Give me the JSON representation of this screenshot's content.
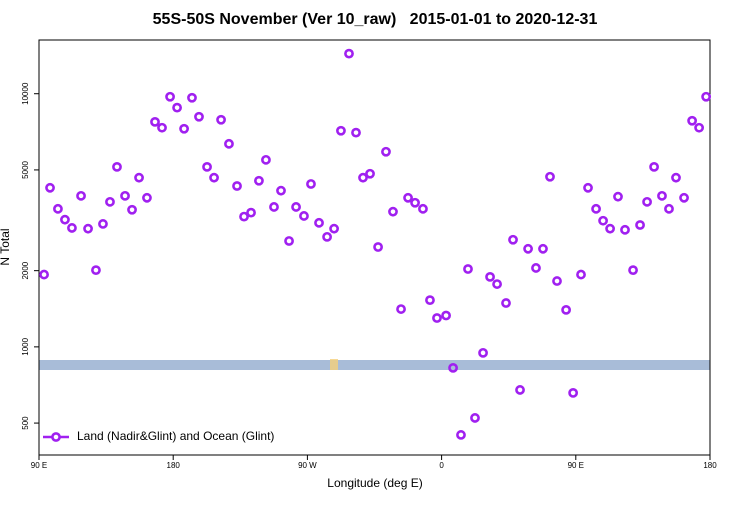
{
  "chart_data": {
    "type": "scatter",
    "title": "55S-50S November (Ver 10_raw)   2015-01-01 to 2020-12-31",
    "x_label": "Longitude (deg E)",
    "y_label": "N Total",
    "log_y": true,
    "grid": false,
    "legend_position": "bottom-left",
    "xlim": [
      90,
      540
    ],
    "xticks": [
      {
        "value": 90,
        "label": "90 E"
      },
      {
        "value": 180,
        "label": "180"
      },
      {
        "value": 270,
        "label": "90 W"
      },
      {
        "value": 360,
        "label": "0"
      },
      {
        "value": 450,
        "label": "90 E"
      },
      {
        "value": 540,
        "label": "180"
      }
    ],
    "ylim": [
      374,
      16300
    ],
    "yticks": [
      500,
      1000,
      2000,
      5000,
      10000
    ],
    "x": [
      93.4,
      97.4,
      102.7,
      107.4,
      112.1,
      118.2,
      122.9,
      128.2,
      132.9,
      137.6,
      142.3,
      147.7,
      152.4,
      157.1,
      162.4,
      167.8,
      172.5,
      177.9,
      182.6,
      187.3,
      192.6,
      197.3,
      202.7,
      207.4,
      212.1,
      217.4,
      222.8,
      227.5,
      232.2,
      237.5,
      242.2,
      247.6,
      252.3,
      257.7,
      262.4,
      267.7,
      272.4,
      277.8,
      283.2,
      287.9,
      292.5,
      297.9,
      302.6,
      307.3,
      312.0,
      317.4,
      322.7,
      327.4,
      332.8,
      337.5,
      342.2,
      347.5,
      352.2,
      356.9,
      363.0,
      367.7,
      373.0,
      377.7,
      382.4,
      387.8,
      392.5,
      397.2,
      403.2,
      407.9,
      412.6,
      418.0,
      423.3,
      428.0,
      432.7,
      437.4,
      443.5,
      448.2,
      453.5,
      458.2,
      463.6,
      468.3,
      473.0,
      478.3,
      483.0,
      488.4,
      493.1,
      497.8,
      502.5,
      507.8,
      512.5,
      517.2,
      522.6,
      528.0,
      532.7,
      537.4
    ],
    "series": [
      {
        "name": "Land (Nadir&Glint) and Ocean (Glint)",
        "color": "#a020f0",
        "values": [
          1930,
          4250,
          3510,
          3180,
          2950,
          3950,
          2930,
          2010,
          3060,
          3740,
          5140,
          3950,
          3480,
          4660,
          3880,
          7740,
          7340,
          9730,
          8810,
          7270,
          9640,
          8110,
          5140,
          4660,
          7890,
          6340,
          4320,
          3270,
          3390,
          4530,
          5480,
          3570,
          4140,
          2620,
          3570,
          3290,
          4400,
          3090,
          2720,
          2930,
          7140,
          14400,
          7020,
          4660,
          4830,
          2480,
          5900,
          3420,
          1410,
          3880,
          3710,
          3510,
          1530,
          1300,
          1330,
          826,
          449,
          2030,
          524,
          947,
          1890,
          1770,
          1490,
          2650,
          676,
          2440,
          2050,
          2440,
          4700,
          1820,
          1400,
          658,
          1930,
          4250,
          3510,
          3150,
          2930,
          3920,
          2900,
          2010,
          3030,
          3740,
          5140,
          3950,
          3510,
          4660,
          3880,
          7820,
          7340,
          9730
        ]
      }
    ]
  }
}
